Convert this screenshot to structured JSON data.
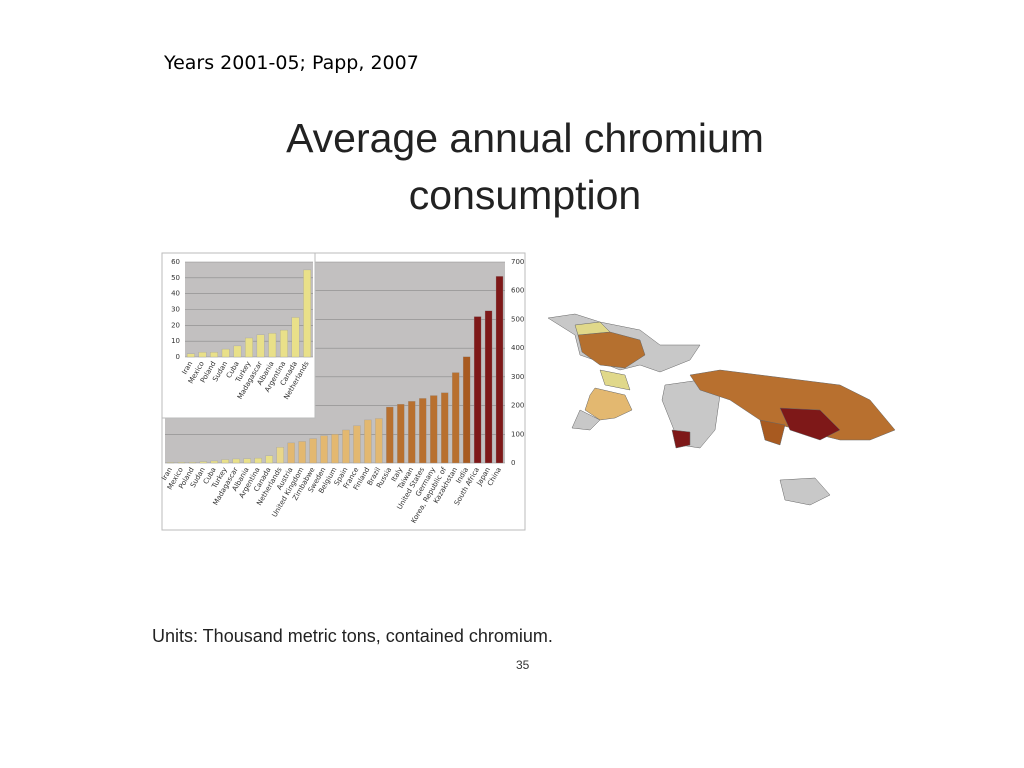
{
  "source": "Years 2001-05; Papp, 2007",
  "title": "Average annual chromium consumption",
  "units_note": "Units: Thousand metric tons, contained chromium.",
  "page_number": "35",
  "chart_data": [
    {
      "type": "bar",
      "categories": [
        "Iran",
        "Mexico",
        "Poland",
        "Sudan",
        "Cuba",
        "Turkey",
        "Madagascar",
        "Albania",
        "Argentina",
        "Canada",
        "Netherlands",
        "Austria",
        "United Kingdom",
        "Zimbabwe",
        "Sweden",
        "Belgium",
        "Spain",
        "France",
        "Finland",
        "Brazil",
        "Russia",
        "Italy",
        "Taiwan",
        "United States",
        "Germany",
        "Korea, Republic of",
        "Kazakhstan",
        "India",
        "South Africa",
        "Japan",
        "China"
      ],
      "values": [
        2,
        3,
        3,
        5,
        7,
        12,
        14,
        15,
        17,
        25,
        55,
        70,
        75,
        85,
        95,
        100,
        115,
        130,
        150,
        155,
        195,
        205,
        215,
        225,
        235,
        245,
        315,
        370,
        510,
        530,
        650
      ],
      "colors": [
        "#e9e089",
        "#e9e089",
        "#e9e089",
        "#e9e089",
        "#e9e089",
        "#e9e089",
        "#e9e089",
        "#e9e089",
        "#e9e089",
        "#e9e089",
        "#e9d78a",
        "#e3b870",
        "#e3b870",
        "#e3b870",
        "#e3b870",
        "#e3b870",
        "#e3b870",
        "#e3b870",
        "#e3b870",
        "#e3b870",
        "#b8702f",
        "#b8702f",
        "#b8702f",
        "#b8702f",
        "#b8702f",
        "#b8702f",
        "#b8702f",
        "#a85a20",
        "#7e1818",
        "#7e1818",
        "#7e1818"
      ],
      "ylim": [
        0,
        700
      ],
      "yticks": [
        0,
        100,
        200,
        300,
        400,
        500,
        600,
        700
      ],
      "grid": true
    },
    {
      "type": "bar",
      "categories": [
        "Iran",
        "Mexico",
        "Poland",
        "Sudan",
        "Cuba",
        "Turkey",
        "Madagascar",
        "Albania",
        "Argentina",
        "Canada",
        "Netherlands"
      ],
      "values": [
        2,
        3,
        3,
        5,
        7,
        12,
        14,
        15,
        17,
        25,
        55
      ],
      "color": "#e9e089",
      "ylim": [
        0,
        60
      ],
      "yticks": [
        0,
        10,
        20,
        30,
        40,
        50,
        60
      ],
      "grid": true
    }
  ]
}
